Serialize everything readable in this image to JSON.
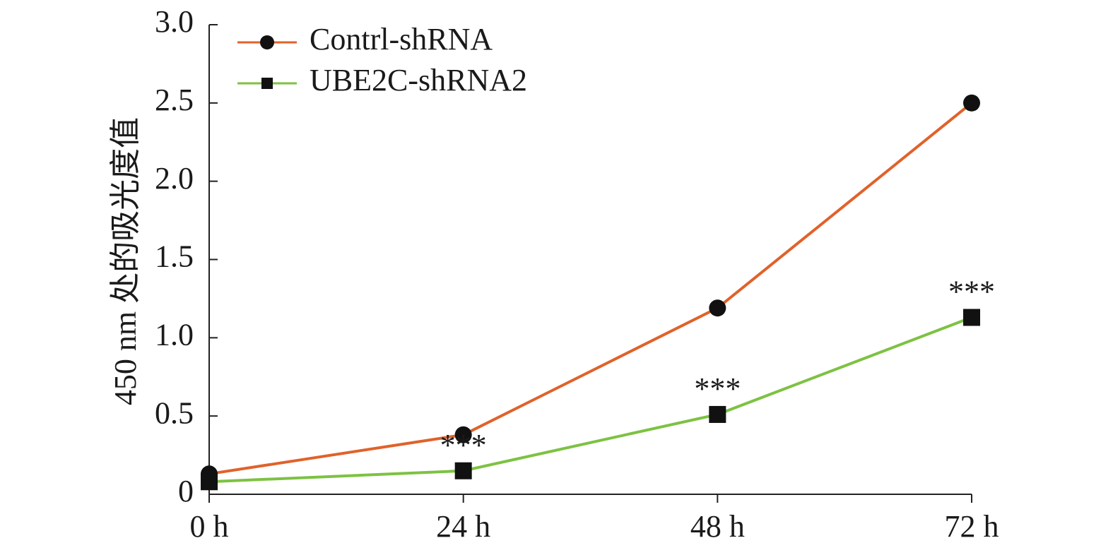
{
  "chart_data": {
    "type": "line",
    "y_label": "450 nm 处的吸光度值",
    "categories": [
      "0 h",
      "24 h",
      "48 h",
      "72 h"
    ],
    "series": [
      {
        "name": "Contrl-shRNA",
        "color": "#e0622a",
        "marker": "circle",
        "values": [
          0.13,
          0.38,
          1.19,
          2.5
        ]
      },
      {
        "name": "UBE2C-shRNA2",
        "color": "#7dc242",
        "marker": "square",
        "values": [
          0.08,
          0.15,
          0.51,
          1.13
        ],
        "annotations": [
          null,
          "***",
          "***",
          "***"
        ]
      }
    ],
    "ylim": [
      0,
      3
    ],
    "yticks": [
      0,
      0.5,
      {
        "value": 1,
        "label": "1.0"
      },
      1.5,
      {
        "value": 2,
        "label": "2.0"
      },
      2.5,
      {
        "value": 3,
        "label": "3.0"
      }
    ],
    "legend": "upper-left"
  }
}
